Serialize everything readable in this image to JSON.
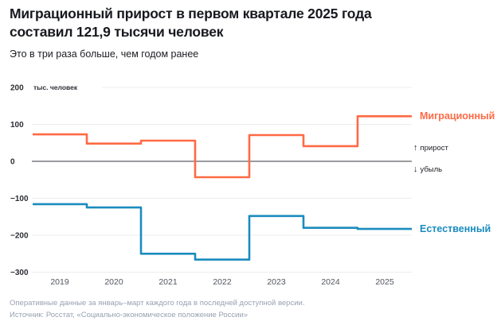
{
  "header": {
    "title_line1": "Миграционный прирост в первом квартале 2025 года",
    "title_line2": "составил 121,9 тысячи человек",
    "subtitle": "Это в три раза больше, чем годом ранее"
  },
  "chart_data": {
    "type": "line",
    "step": true,
    "title": "Миграционный прирост в первом квартале 2025 года составил 121,9 тысячи человек",
    "categories": [
      "2019",
      "2020",
      "2021",
      "2022",
      "2023",
      "2024",
      "2025"
    ],
    "series": [
      {
        "name": "Миграционный",
        "color": "#FF6A45",
        "values": [
          73,
          48,
          56,
          -43,
          71,
          41,
          121.9
        ]
      },
      {
        "name": "Естественный",
        "color": "#1B8CBE",
        "values": [
          -116,
          -125,
          -250,
          -266,
          -148,
          -180,
          -183
        ]
      }
    ],
    "y_axis": {
      "unit": "тыс. человек",
      "ticks": [
        200,
        100,
        0,
        -100,
        -200,
        -300
      ],
      "ylim": [
        -320,
        230
      ],
      "grid": true
    },
    "legend_position": "right",
    "annotations": {
      "up_arrow": "↑",
      "up_label": "прирост",
      "down_arrow": "↓",
      "down_label": "убыль"
    }
  },
  "footer": {
    "note": "Оперативные данные за январь–март каждого года в последней доступной версии.",
    "source": "Источник: Росстат, «Социально-экономическое положение России»"
  },
  "colors": {
    "accent_orange": "#FF6A45",
    "accent_blue": "#1B8CBE",
    "text": "#17191E",
    "muted_footer": "#98A1B2",
    "grid": "#ECEDEF",
    "zero_line": "#5C5F66",
    "tick_label": "#2B2E34",
    "year_label": "#51565F"
  }
}
